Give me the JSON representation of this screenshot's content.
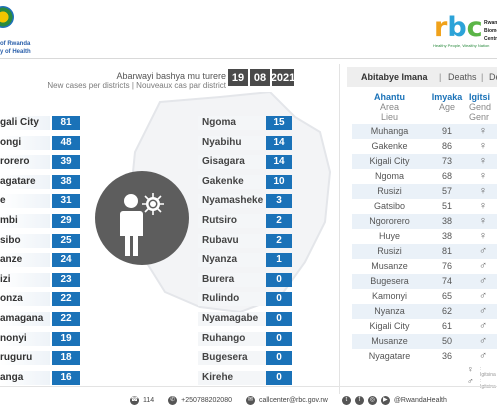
{
  "org": {
    "line1": "of Rwanda",
    "line2": "y of Health"
  },
  "logo": {
    "letters": [
      "r",
      "b",
      "c"
    ],
    "words": [
      "Rwanda",
      "Biome",
      "Centre"
    ],
    "tagline": "Healthy People, Wealthy Nation"
  },
  "header": {
    "title": "Abarwayi bashya mu turere",
    "subtitle": "New cases per districts  |  Nouveaux cas par district",
    "date": [
      "19",
      "08",
      "2021"
    ]
  },
  "left_districts": [
    {
      "name": "gali City",
      "value": "81"
    },
    {
      "name": "ongi",
      "value": "48"
    },
    {
      "name": "rorero",
      "value": "39"
    },
    {
      "name": "agatare",
      "value": "38"
    },
    {
      "name": "e",
      "value": "31"
    },
    {
      "name": "mbi",
      "value": "29"
    },
    {
      "name": "sibo",
      "value": "25"
    },
    {
      "name": "anze",
      "value": "24"
    },
    {
      "name": "izi",
      "value": "23"
    },
    {
      "name": "onza",
      "value": "22"
    },
    {
      "name": "amagana",
      "value": "22"
    },
    {
      "name": "nonyi",
      "value": "19"
    },
    {
      "name": "ruguru",
      "value": "18"
    },
    {
      "name": "anga",
      "value": "16"
    }
  ],
  "right_districts": [
    {
      "name": "Ngoma",
      "value": "15"
    },
    {
      "name": "Nyabihu",
      "value": "14"
    },
    {
      "name": "Gisagara",
      "value": "14"
    },
    {
      "name": "Gakenke",
      "value": "10"
    },
    {
      "name": "Nyamasheke",
      "value": "3"
    },
    {
      "name": "Rutsiro",
      "value": "2"
    },
    {
      "name": "Rubavu",
      "value": "2"
    },
    {
      "name": "Nyanza",
      "value": "1"
    },
    {
      "name": "Burera",
      "value": "0"
    },
    {
      "name": "Rulindo",
      "value": "0"
    },
    {
      "name": "Nyamagabe",
      "value": "0"
    },
    {
      "name": "Ruhango",
      "value": "0"
    },
    {
      "name": "Bugesera",
      "value": "0"
    },
    {
      "name": "Kirehe",
      "value": "0"
    }
  ],
  "deaths_panel": {
    "tab_active": "Abitabye Imana",
    "tab_separator": "|",
    "tab_deaths": "Deaths",
    "tab_deces": "Déc",
    "columns": {
      "district": {
        "main": "Ahantu",
        "sub1": "Area",
        "sub2": "Lieu"
      },
      "age": {
        "main": "Imyaka",
        "sub1": "Age",
        "sub2": ""
      },
      "gender": {
        "main": "Igitsi",
        "sub1": "Gend",
        "sub2": "Genr"
      }
    },
    "rows": [
      {
        "district": "Muhanga",
        "age": "91",
        "gender": "female"
      },
      {
        "district": "Gakenke",
        "age": "86",
        "gender": "female"
      },
      {
        "district": "Kigali City",
        "age": "73",
        "gender": "female"
      },
      {
        "district": "Ngoma",
        "age": "68",
        "gender": "female"
      },
      {
        "district": "Rusizi",
        "age": "57",
        "gender": "female"
      },
      {
        "district": "Gatsibo",
        "age": "51",
        "gender": "female"
      },
      {
        "district": "Ngororero",
        "age": "38",
        "gender": "female"
      },
      {
        "district": "Huye",
        "age": "38",
        "gender": "female"
      },
      {
        "district": "Rusizi",
        "age": "81",
        "gender": "male"
      },
      {
        "district": "Musanze",
        "age": "76",
        "gender": "male"
      },
      {
        "district": "Bugesera",
        "age": "74",
        "gender": "male"
      },
      {
        "district": "Kamonyi",
        "age": "65",
        "gender": "male"
      },
      {
        "district": "Nyanza",
        "age": "62",
        "gender": "male"
      },
      {
        "district": "Kigali City",
        "age": "61",
        "gender": "male"
      },
      {
        "district": "Musanze",
        "age": "50",
        "gender": "male"
      },
      {
        "district": "Nyagatare",
        "age": "36",
        "gender": "male"
      }
    ],
    "legend": {
      "female_label": ": Igitsina",
      "male_label": ": Igitsina"
    }
  },
  "footer": {
    "hotline": "114",
    "phone": "+250788202080",
    "email": "callcenter@rbc.gov.rw",
    "social": "@RwandaHealth"
  },
  "colors": {
    "accent_blue": "#1a72b8",
    "date_bg": "#4a4a4a",
    "circle_bg": "#5d5d5d"
  }
}
